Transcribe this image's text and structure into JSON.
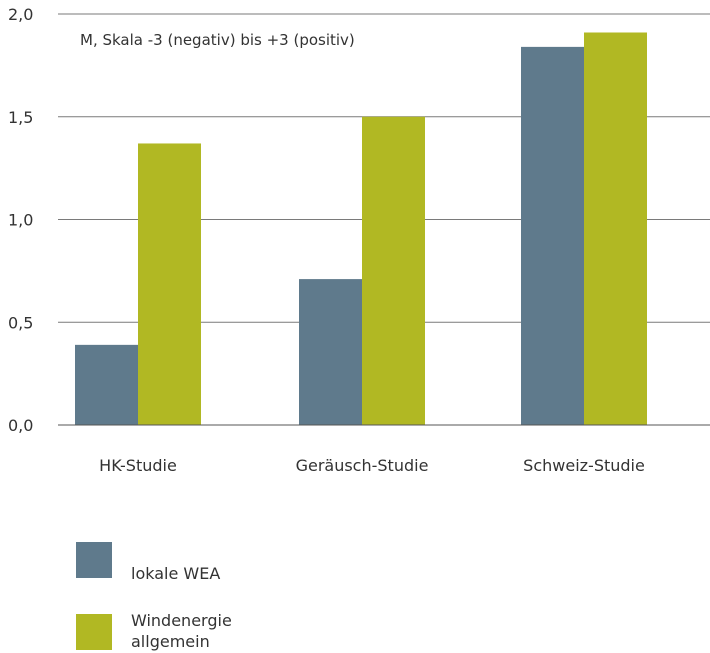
{
  "chart_data": {
    "type": "bar",
    "title": "",
    "annotation": "M, Skala -3 (negativ) bis +3 (positiv)",
    "xlabel": "",
    "ylabel": "",
    "categories": [
      "HK-Studie",
      "Geräusch-Studie",
      "Schweiz-Studie"
    ],
    "series": [
      {
        "name": "lokale WEA",
        "color": "#5f7a8c",
        "values": [
          0.39,
          0.71,
          1.84
        ]
      },
      {
        "name": "Windenergie allgemein",
        "color": "#b1b823",
        "values": [
          1.37,
          1.5,
          1.91
        ]
      }
    ],
    "legend": {
      "placement": "bottom-left",
      "items": [
        {
          "lines": [
            "lokale WEA"
          ]
        },
        {
          "lines": [
            "Windenergie",
            "allgemein"
          ]
        }
      ]
    },
    "ylim": [
      0,
      2
    ],
    "yticks": [
      0,
      0.5,
      1.0,
      1.5,
      2.0
    ],
    "ytick_labels": [
      "0,0",
      "0,5",
      "1,0",
      "1,5",
      "2,0"
    ],
    "grid": true
  }
}
